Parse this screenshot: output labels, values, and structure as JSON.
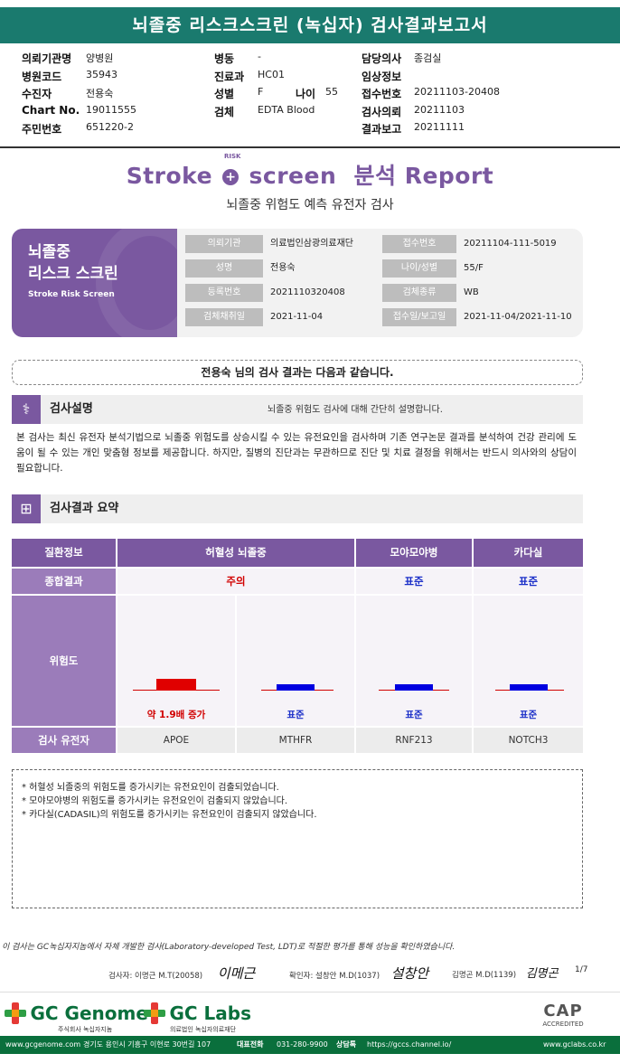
{
  "report_title": "뇌졸중 리스크스크린 (녹십자) 검사결과보고서",
  "header": {
    "col1": [
      {
        "key": "의뢰기관명",
        "value": "양병원"
      },
      {
        "key": "병원코드",
        "value": "35943"
      },
      {
        "key": "수진자",
        "value": "전용숙"
      },
      {
        "key": "Chart No.",
        "value": "19011555"
      },
      {
        "key": "주민번호",
        "value": "651220-2"
      }
    ],
    "col2": [
      {
        "key": "병동",
        "value": "-"
      },
      {
        "key": "진료과",
        "value": "HC01"
      },
      {
        "key": "성별",
        "value": "F"
      },
      {
        "key": "검체",
        "value": "EDTA Blood"
      }
    ],
    "age_key": "나이",
    "age_value": "55",
    "col3": [
      {
        "key": "담당의사",
        "value": "종검실"
      },
      {
        "key": "임상정보",
        "value": ""
      },
      {
        "key": "접수번호",
        "value": "20211103-20408"
      },
      {
        "key": "검사의뢰",
        "value": "20211103"
      },
      {
        "key": "결과보고",
        "value": "20211111"
      }
    ]
  },
  "brand": {
    "stroke": "Stroke",
    "risk": "RISK",
    "screen": "screen",
    "report": "분석 Report",
    "subtitle": "뇌졸중 위험도 예측 유전자 검사"
  },
  "card": {
    "title_line1": "뇌졸중",
    "title_line2": "리스크 스크린",
    "title_en": "Stroke Risk Screen",
    "rows": [
      [
        {
          "key": "의뢰기관",
          "value": "의료법인삼광의료재단"
        },
        {
          "key": "접수번호",
          "value": "20211104-111-5019"
        }
      ],
      [
        {
          "key": "성명",
          "value": "전용숙"
        },
        {
          "key": "나이/성별",
          "value": "55/F"
        }
      ],
      [
        {
          "key": "등록번호",
          "value": "2021110320408"
        },
        {
          "key": "검체종류",
          "value": "WB"
        }
      ],
      [
        {
          "key": "검체채취일",
          "value": "2021-11-04"
        },
        {
          "key": "접수일/보고일",
          "value": "2021-11-04/2021-11-10"
        }
      ]
    ]
  },
  "result_banner": "전용숙 님의 검사 결과는 다음과 같습니다.",
  "section_desc": {
    "title": "검사설명",
    "subtitle": "뇌졸중 위험도 검사에 대해 간단히 설명합니다.",
    "body": "본 검사는 최신 유전자 분석기법으로 뇌졸중 위험도를 상승시킬 수 있는 유전요인을 검사하며 기존 연구논문 결과를 분석하여 건강 관리에 도움이 될 수 있는 개인 맞춤형 정보를 제공합니다. 하지만, 질병의 진단과는 무관하므로 진단 및 치료 결정을 위해서는 반드시 의사와의 상담이 필요합니다."
  },
  "section_summary": {
    "title": "검사결과 요약"
  },
  "table": {
    "h_disease": "질환정보",
    "h_result": "종합결과",
    "h_risk": "위험도",
    "h_gene": "검사 유전자",
    "diseases": [
      {
        "name": "허혈성 뇌졸중",
        "result": "주의",
        "result_color": "#d10000"
      },
      {
        "name": "모야모야병",
        "result": "표준",
        "result_color": "#1b2fc8"
      },
      {
        "name": "카다실",
        "result": "표준",
        "result_color": "#1b2fc8"
      }
    ],
    "genes": [
      {
        "gene": "APOE",
        "risk_label": "약 1.9배 증가",
        "risk_level": 1.9,
        "color": "#e00000"
      },
      {
        "gene": "MTHFR",
        "risk_label": "표준",
        "risk_level": 1.0,
        "color": "#0000e0"
      },
      {
        "gene": "RNF213",
        "risk_label": "표준",
        "risk_level": 1.0,
        "color": "#0000e0"
      },
      {
        "gene": "NOTCH3",
        "risk_label": "표준",
        "risk_level": 1.0,
        "color": "#0000e0"
      }
    ]
  },
  "notes": [
    "* 허혈성 뇌졸중의 위험도를 증가시키는 유전요인이 검출되었습니다.",
    "* 모야모야병의 위험도를 증가시키는 유전요인이 검출되지 않았습니다.",
    "* 카다실(CADASIL)의 위험도를 증가시키는 유전요인이 검출되지 않았습니다."
  ],
  "ldt_note": "이 검사는 GC녹십자지놈에서 자체 개발한 검사(Laboratory-developed Test, LDT)로 적절한 평가를 통해 성능을 확인하였습니다.",
  "signatures": [
    {
      "label": "검사자: 이명근 M.T(20058)",
      "sig": "이메근"
    },
    {
      "label": "확인자: 설창안 M.D(1037)",
      "sig": "설창안"
    },
    {
      "label": "김명곤 M.D(1139)",
      "sig": "김명곤"
    }
  ],
  "page": "1/7",
  "logos": {
    "genome": "GC Genome",
    "genome_sub": "주식회사 녹십자지놈",
    "labs": "GC Labs",
    "labs_sub": "의료법인 녹십자의료재단",
    "cap": "CAP",
    "cap_sub": "ACCREDITED"
  },
  "footer": {
    "site": "www.gcgenome.com",
    "address": "경기도 용인시 기흥구 이현로 30번길 107",
    "phone_label": "대표전화",
    "phone": "031-280-9900",
    "chat_label": "상담톡",
    "chat": "https://gccs.channel.io/",
    "site2": "www.gclabs.co.kr"
  }
}
